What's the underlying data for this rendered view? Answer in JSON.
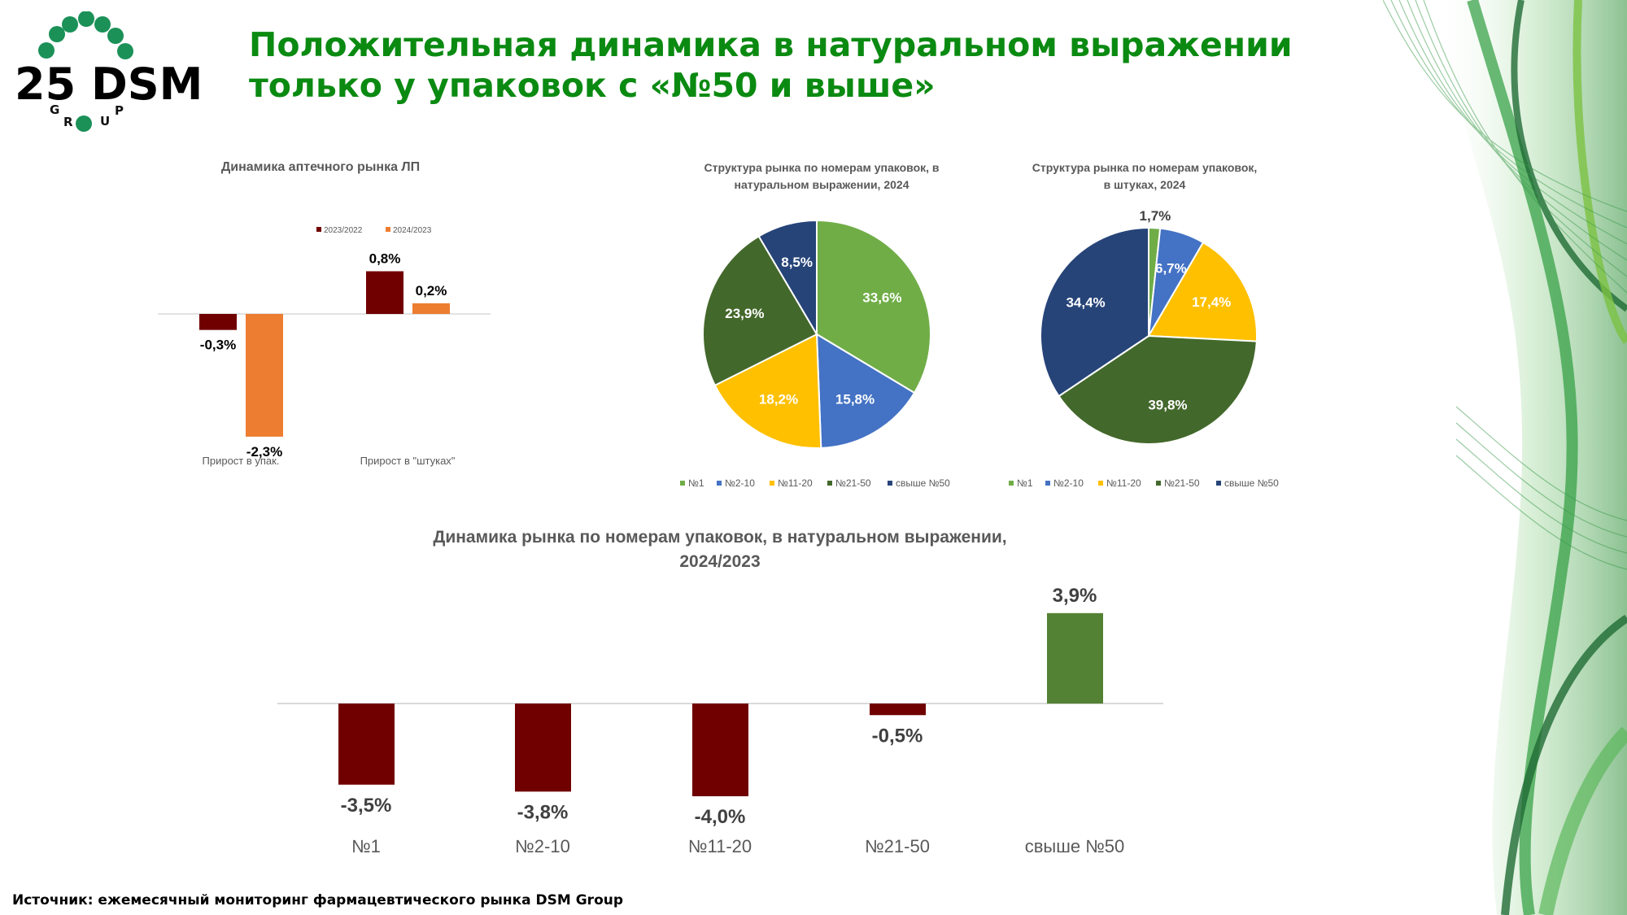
{
  "header": {
    "title_line1": "Положительная динамика в натуральном выражении",
    "title_line2": "только у упаковок с «№50 и выше»",
    "logo_text": "25 DSM",
    "logo_subtext": "GROUP"
  },
  "footer": {
    "source": "Источник: ежемесячный мониторинг фармацевтического рынка DSM Group"
  },
  "colors": {
    "title": "#0b8a12",
    "dark_red": "#700000",
    "orange": "#ED7D31",
    "green_bar": "#548235",
    "pie": [
      "#70AD47",
      "#4472C4",
      "#FFC000",
      "#43682B",
      "#264478"
    ]
  },
  "chart_data": [
    {
      "type": "bar",
      "title": "Динамика аптечного рынка ЛП",
      "categories": [
        "Прирост в упак.",
        "Прирост в \"штуках\""
      ],
      "series": [
        {
          "name": "2023/2022",
          "values": [
            -0.3,
            0.8
          ],
          "labels": [
            "-0,3%",
            "0,8%"
          ],
          "color": "#700000"
        },
        {
          "name": "2024/2023",
          "values": [
            -2.3,
            0.2
          ],
          "labels": [
            "-2,3%",
            "0,2%"
          ],
          "color": "#ED7D31"
        }
      ],
      "unit": "%",
      "legend": "top"
    },
    {
      "type": "pie",
      "title_line1": "Структура рынка по номерам упаковок, в",
      "title_line2": "натуральном выражении, 2024",
      "categories": [
        "№1",
        "№2-10",
        "№11-20",
        "№21-50",
        "свыше №50"
      ],
      "values": [
        33.6,
        15.8,
        18.2,
        23.9,
        8.5
      ],
      "labels": [
        "33,6%",
        "15,8%",
        "18,2%",
        "23,9%",
        "8,5%"
      ],
      "legend": "bottom"
    },
    {
      "type": "pie",
      "title_line1": "Структура рынка по номерам упаковок,",
      "title_line2": "в штуках, 2024",
      "categories": [
        "№1",
        "№2-10",
        "№11-20",
        "№21-50",
        "свыше №50"
      ],
      "values": [
        1.7,
        6.7,
        17.4,
        39.8,
        34.4
      ],
      "labels": [
        "1,7%",
        "6,7%",
        "17,4%",
        "39,8%",
        "34,4%"
      ],
      "legend": "bottom"
    },
    {
      "type": "bar",
      "title_line1": "Динамика рынка по номерам упаковок, в натуральном выражении,",
      "title_line2": "2024/2023",
      "categories": [
        "№1",
        "№2-10",
        "№11-20",
        "№21-50",
        "свыше №50"
      ],
      "values": [
        -3.5,
        -3.8,
        -4.0,
        -0.5,
        3.9
      ],
      "labels": [
        "-3,5%",
        "-3,8%",
        "-4,0%",
        "-0,5%",
        "3,9%"
      ],
      "unit": "%"
    }
  ]
}
